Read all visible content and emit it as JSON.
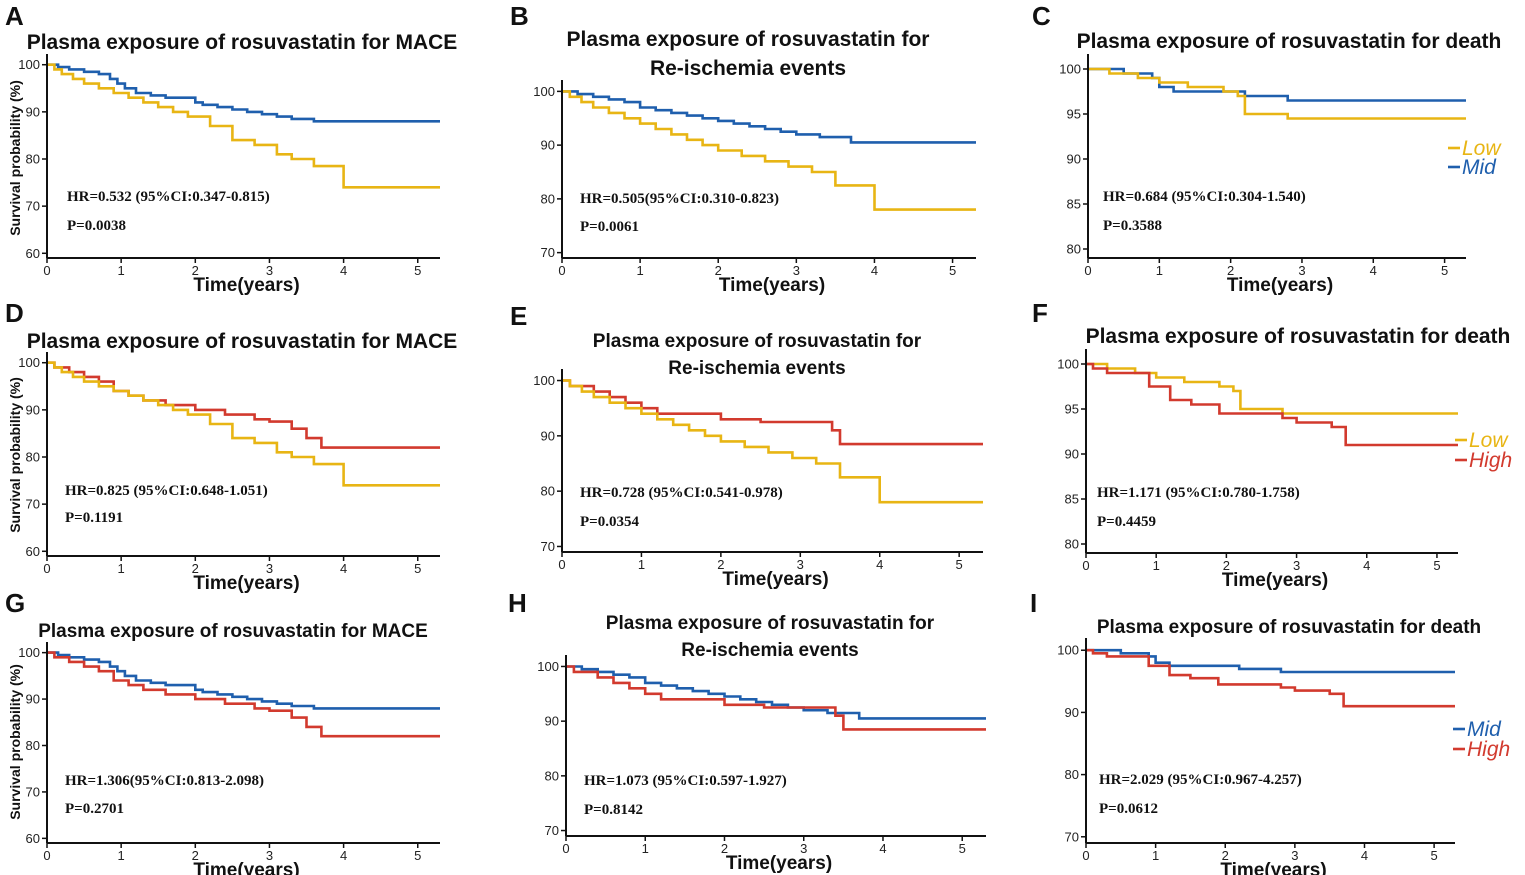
{
  "colors": {
    "Low": "#E8B514",
    "Mid": "#1F5FAD",
    "High": "#D23A2E"
  },
  "chart_data": [
    {
      "type": "line",
      "panel": "A",
      "title": [
        "Plasma exposure of rosuvastatin for MACE"
      ],
      "xlabel": "Time(years)",
      "ylabel": "Survival probability (%)",
      "xlim": [
        0,
        5.3
      ],
      "ylim": [
        59,
        101
      ],
      "xticks": [
        0,
        1,
        2,
        3,
        4,
        5
      ],
      "yticks": [
        60,
        70,
        80,
        90,
        100
      ],
      "hr": "HR=0.532 (95%CI:0.347-0.815)",
      "p": "P=0.0038",
      "legend": [],
      "series": [
        {
          "name": "Mid",
          "x": [
            0,
            0.15,
            0.3,
            0.5,
            0.7,
            0.85,
            0.95,
            1.05,
            1.2,
            1.4,
            1.6,
            2.0,
            2.1,
            2.3,
            2.5,
            2.7,
            2.9,
            3.1,
            3.3,
            3.6,
            3.8,
            5.3
          ],
          "y": [
            100,
            99.5,
            99,
            98.5,
            98,
            97,
            96,
            95,
            94,
            93.5,
            93,
            92,
            91.5,
            91,
            90.5,
            90,
            89.5,
            89,
            88.5,
            88,
            88,
            88
          ]
        },
        {
          "name": "Low",
          "x": [
            0,
            0.1,
            0.2,
            0.35,
            0.5,
            0.7,
            0.9,
            1.1,
            1.3,
            1.5,
            1.7,
            1.9,
            2.2,
            2.5,
            2.8,
            3.1,
            3.3,
            3.6,
            4.0,
            5.3
          ],
          "y": [
            100,
            99,
            98,
            97,
            96,
            95,
            94,
            93,
            92,
            91,
            90,
            89,
            87,
            84,
            83,
            81,
            80,
            78.5,
            74,
            74
          ]
        }
      ]
    },
    {
      "type": "line",
      "panel": "B",
      "title": [
        "Plasma exposure of rosuvastatin for",
        "Re-ischemia events"
      ],
      "xlabel": "Time(years)",
      "ylabel": "",
      "xlim": [
        0,
        5.3
      ],
      "ylim": [
        69,
        101
      ],
      "xticks": [
        0,
        1,
        2,
        3,
        4,
        5
      ],
      "yticks": [
        70,
        80,
        90,
        100
      ],
      "hr": "HR=0.505(95%CI:0.310-0.823)",
      "p": "P=0.0061",
      "legend": [],
      "series": [
        {
          "name": "Mid",
          "x": [
            0,
            0.2,
            0.4,
            0.6,
            0.8,
            1.0,
            1.2,
            1.4,
            1.6,
            1.8,
            2.0,
            2.2,
            2.4,
            2.6,
            2.8,
            3.0,
            3.3,
            3.6,
            3.7,
            5.3
          ],
          "y": [
            100,
            99.5,
            99,
            98.5,
            98,
            97,
            96.5,
            96,
            95.5,
            95,
            94.5,
            94,
            93.5,
            93,
            92.5,
            92,
            91.5,
            91.5,
            90.5,
            90.5
          ]
        },
        {
          "name": "Low",
          "x": [
            0,
            0.1,
            0.25,
            0.4,
            0.6,
            0.8,
            1.0,
            1.2,
            1.4,
            1.6,
            1.8,
            2.0,
            2.3,
            2.6,
            2.9,
            3.2,
            3.5,
            4.0,
            5.3
          ],
          "y": [
            100,
            99,
            98,
            97,
            96,
            95,
            94,
            93,
            92,
            91,
            90,
            89,
            88,
            87,
            86,
            85,
            82.5,
            78,
            78
          ]
        }
      ]
    },
    {
      "type": "line",
      "panel": "C",
      "title": [
        "Plasma exposure of rosuvastatin for death"
      ],
      "xlabel": "Time(years)",
      "ylabel": "",
      "xlim": [
        0,
        5.3
      ],
      "ylim": [
        79,
        101
      ],
      "xticks": [
        0,
        1,
        2,
        3,
        4,
        5
      ],
      "yticks": [
        80,
        85,
        90,
        95,
        100
      ],
      "hr": "HR=0.684 (95%CI:0.304-1.540)",
      "p": "P=0.3588",
      "legend": [
        "Low",
        "Mid"
      ],
      "series": [
        {
          "name": "Mid",
          "x": [
            0,
            0.3,
            0.5,
            0.9,
            1.0,
            1.2,
            1.9,
            2.2,
            2.8,
            5.3
          ],
          "y": [
            100,
            100,
            99.5,
            99,
            98,
            97.5,
            97.5,
            97,
            96.5,
            96.5
          ]
        },
        {
          "name": "Low",
          "x": [
            0,
            0.3,
            0.7,
            1.0,
            1.4,
            1.9,
            2.1,
            2.2,
            2.8,
            5.3
          ],
          "y": [
            100,
            99.5,
            99,
            98.5,
            98,
            97.5,
            97,
            95,
            94.5,
            94.5
          ]
        }
      ]
    },
    {
      "type": "line",
      "panel": "D",
      "title": [
        "Plasma exposure of rosuvastatin for MACE"
      ],
      "xlabel": "Time(years)",
      "ylabel": "Survival probability (%)",
      "xlim": [
        0,
        5.3
      ],
      "ylim": [
        59,
        101
      ],
      "xticks": [
        0,
        1,
        2,
        3,
        4,
        5
      ],
      "yticks": [
        60,
        70,
        80,
        90,
        100
      ],
      "hr": "HR=0.825 (95%CI:0.648-1.051)",
      "p": "P=0.1191",
      "legend": [],
      "series": [
        {
          "name": "High",
          "x": [
            0,
            0.1,
            0.3,
            0.5,
            0.7,
            0.9,
            1.1,
            1.3,
            1.6,
            2.0,
            2.4,
            2.8,
            3.0,
            3.3,
            3.5,
            3.7,
            5.3
          ],
          "y": [
            100,
            99,
            98,
            97,
            96,
            94,
            93,
            92,
            91,
            90,
            89,
            88,
            87.5,
            86,
            84,
            82,
            82
          ]
        },
        {
          "name": "Low",
          "x": [
            0,
            0.1,
            0.2,
            0.35,
            0.5,
            0.7,
            0.9,
            1.1,
            1.3,
            1.5,
            1.7,
            1.9,
            2.2,
            2.5,
            2.8,
            3.1,
            3.3,
            3.6,
            4.0,
            5.3
          ],
          "y": [
            100,
            99,
            98,
            97,
            96,
            95,
            94,
            93,
            92,
            91,
            90,
            89,
            87,
            84,
            83,
            81,
            80,
            78.5,
            74,
            74
          ]
        }
      ]
    },
    {
      "type": "line",
      "panel": "E",
      "title": [
        "Plasma exposure of rosuvastatin for",
        "Re-ischemia events"
      ],
      "xlabel": "Time(years)",
      "ylabel": "",
      "xlim": [
        0,
        5.3
      ],
      "ylim": [
        69,
        101
      ],
      "xticks": [
        0,
        1,
        2,
        3,
        4,
        5
      ],
      "yticks": [
        70,
        80,
        90,
        100
      ],
      "hr": "HR=0.728 (95%CI:0.541-0.978)",
      "p": "P=0.0354",
      "legend": [],
      "series": [
        {
          "name": "High",
          "x": [
            0,
            0.1,
            0.4,
            0.6,
            0.8,
            1.0,
            1.2,
            1.4,
            2.0,
            2.5,
            3.0,
            3.4,
            3.5,
            5.3
          ],
          "y": [
            100,
            99,
            98,
            97,
            96,
            95,
            94,
            94,
            93,
            92.5,
            92.5,
            91,
            88.5,
            88.5
          ]
        },
        {
          "name": "Low",
          "x": [
            0,
            0.1,
            0.25,
            0.4,
            0.6,
            0.8,
            1.0,
            1.2,
            1.4,
            1.6,
            1.8,
            2.0,
            2.3,
            2.6,
            2.9,
            3.2,
            3.5,
            4.0,
            5.3
          ],
          "y": [
            100,
            99,
            98,
            97,
            96,
            95,
            94,
            93,
            92,
            91,
            90,
            89,
            88,
            87,
            86,
            85,
            82.5,
            78,
            78
          ]
        }
      ]
    },
    {
      "type": "line",
      "panel": "F",
      "title": [
        "Plasma exposure of rosuvastatin for death"
      ],
      "xlabel": "Time(years)",
      "ylabel": "",
      "xlim": [
        0,
        5.3
      ],
      "ylim": [
        79,
        101
      ],
      "xticks": [
        0,
        1,
        2,
        3,
        4,
        5
      ],
      "yticks": [
        80,
        85,
        90,
        95,
        100
      ],
      "hr": "HR=1.171 (95%CI:0.780-1.758)",
      "p": "P=0.4459",
      "legend": [
        "Low",
        "High"
      ],
      "series": [
        {
          "name": "Low",
          "x": [
            0,
            0.3,
            0.7,
            1.0,
            1.4,
            1.9,
            2.1,
            2.2,
            2.8,
            5.3
          ],
          "y": [
            100,
            99.5,
            99,
            98.5,
            98,
            97.5,
            97,
            95,
            94.5,
            94.5
          ]
        },
        {
          "name": "High",
          "x": [
            0,
            0.1,
            0.3,
            0.7,
            0.9,
            1.2,
            1.5,
            1.9,
            2.8,
            3.0,
            3.5,
            3.7,
            5.3
          ],
          "y": [
            100,
            99.5,
            99,
            99,
            97.5,
            96,
            95.5,
            94.5,
            94,
            93.5,
            93,
            91,
            91
          ]
        }
      ]
    },
    {
      "type": "line",
      "panel": "G",
      "title": [
        "Plasma exposure of rosuvastatin for MACE"
      ],
      "xlabel": "Time(years)",
      "ylabel": "Survival probability (%)",
      "xlim": [
        0,
        5.3
      ],
      "ylim": [
        59,
        101
      ],
      "xticks": [
        0,
        1,
        2,
        3,
        4,
        5
      ],
      "yticks": [
        60,
        70,
        80,
        90,
        100
      ],
      "hr": "HR=1.306(95%CI:0.813-2.098)",
      "p": "P=0.2701",
      "legend": [],
      "series": [
        {
          "name": "Mid",
          "x": [
            0,
            0.15,
            0.3,
            0.5,
            0.7,
            0.85,
            0.95,
            1.05,
            1.2,
            1.4,
            1.6,
            2.0,
            2.1,
            2.3,
            2.5,
            2.7,
            2.9,
            3.1,
            3.3,
            3.6,
            3.8,
            5.3
          ],
          "y": [
            100,
            99.5,
            99,
            98.5,
            98,
            97,
            96,
            95,
            94,
            93.5,
            93,
            92,
            91.5,
            91,
            90.5,
            90,
            89.5,
            89,
            88.5,
            88,
            88,
            88
          ]
        },
        {
          "name": "High",
          "x": [
            0,
            0.1,
            0.3,
            0.5,
            0.7,
            0.9,
            1.1,
            1.3,
            1.6,
            2.0,
            2.4,
            2.8,
            3.0,
            3.3,
            3.5,
            3.7,
            5.3
          ],
          "y": [
            100,
            99,
            98,
            97,
            96,
            94,
            93,
            92,
            91,
            90,
            89,
            88,
            87.5,
            86,
            84,
            82,
            82
          ]
        }
      ]
    },
    {
      "type": "line",
      "panel": "H",
      "title": [
        "Plasma exposure of rosuvastatin for",
        "Re-ischemia events"
      ],
      "xlabel": "Time(years)",
      "ylabel": "",
      "xlim": [
        0,
        5.3
      ],
      "ylim": [
        69,
        101
      ],
      "xticks": [
        0,
        1,
        2,
        3,
        4,
        5
      ],
      "yticks": [
        70,
        80,
        90,
        100
      ],
      "hr": "HR=1.073 (95%CI:0.597-1.927)",
      "p": "P=0.8142",
      "legend": [],
      "series": [
        {
          "name": "Mid",
          "x": [
            0,
            0.2,
            0.4,
            0.6,
            0.8,
            1.0,
            1.2,
            1.4,
            1.6,
            1.8,
            2.0,
            2.2,
            2.4,
            2.6,
            2.8,
            3.0,
            3.3,
            3.6,
            3.7,
            5.3
          ],
          "y": [
            100,
            99.5,
            99,
            98.5,
            98,
            97,
            96.5,
            96,
            95.5,
            95,
            94.5,
            94,
            93.5,
            93,
            92.5,
            92,
            91.5,
            91.5,
            90.5,
            90.5
          ]
        },
        {
          "name": "High",
          "x": [
            0,
            0.1,
            0.4,
            0.6,
            0.8,
            1.0,
            1.2,
            1.4,
            2.0,
            2.5,
            3.0,
            3.4,
            3.5,
            5.3
          ],
          "y": [
            100,
            99,
            98,
            97,
            96,
            95,
            94,
            94,
            93,
            92.5,
            92.5,
            91,
            88.5,
            88.5
          ]
        }
      ]
    },
    {
      "type": "line",
      "panel": "I",
      "title": [
        "Plasma exposure of rosuvastatin for death"
      ],
      "xlabel": "Time(years)",
      "ylabel": "",
      "xlim": [
        0,
        5.3
      ],
      "ylim": [
        69,
        101
      ],
      "xticks": [
        0,
        1,
        2,
        3,
        4,
        5
      ],
      "yticks": [
        70,
        80,
        90,
        100
      ],
      "hr": "HR=2.029 (95%CI:0.967-4.257)",
      "p": "P=0.0612",
      "legend": [
        "Mid",
        "High"
      ],
      "series": [
        {
          "name": "Mid",
          "x": [
            0,
            0.3,
            0.5,
            0.9,
            1.0,
            1.2,
            1.9,
            2.2,
            2.8,
            5.3
          ],
          "y": [
            100,
            100,
            99.5,
            99,
            98,
            97.5,
            97.5,
            97,
            96.5,
            96.5
          ]
        },
        {
          "name": "High",
          "x": [
            0,
            0.1,
            0.3,
            0.7,
            0.9,
            1.2,
            1.5,
            1.9,
            2.8,
            3.0,
            3.5,
            3.7,
            5.3
          ],
          "y": [
            100,
            99.5,
            99,
            99,
            97.5,
            96,
            95.5,
            94.5,
            94,
            93.5,
            93,
            91,
            91
          ]
        }
      ]
    }
  ]
}
